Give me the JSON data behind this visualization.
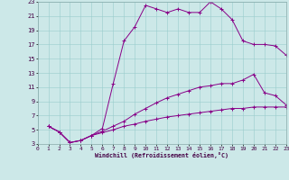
{
  "xlabel": "Windchill (Refroidissement éolien,°C)",
  "bg_color": "#cce8e8",
  "grid_color": "#99cccc",
  "line_color": "#880088",
  "xlim": [
    0,
    23
  ],
  "ylim": [
    3,
    23
  ],
  "xticks": [
    0,
    1,
    2,
    3,
    4,
    5,
    6,
    7,
    8,
    9,
    10,
    11,
    12,
    13,
    14,
    15,
    16,
    17,
    18,
    19,
    20,
    21,
    22,
    23
  ],
  "yticks": [
    3,
    5,
    7,
    9,
    11,
    13,
    15,
    17,
    19,
    21,
    23
  ],
  "line1_x": [
    1,
    2,
    3,
    4,
    5,
    6,
    7,
    8,
    9,
    10,
    11,
    12,
    13,
    14,
    15,
    16,
    17,
    18,
    19,
    20,
    21,
    22,
    23
  ],
  "line1_y": [
    5.5,
    4.7,
    3.2,
    3.5,
    4.2,
    5.2,
    11.5,
    17.5,
    19.5,
    22.5,
    22.0,
    21.5,
    22.0,
    21.5,
    21.5,
    23.0,
    22.0,
    20.5,
    17.5,
    17.0,
    17.0,
    16.8,
    15.5
  ],
  "line2_x": [
    1,
    2,
    3,
    4,
    5,
    6,
    7,
    8,
    9,
    10,
    11,
    12,
    13,
    14,
    15,
    16,
    17,
    18,
    19,
    20,
    21,
    22,
    23
  ],
  "line2_y": [
    5.5,
    4.7,
    3.2,
    3.5,
    4.2,
    4.8,
    5.5,
    6.2,
    7.2,
    8.0,
    8.8,
    9.5,
    10.0,
    10.5,
    11.0,
    11.2,
    11.5,
    11.5,
    12.0,
    12.8,
    10.2,
    9.8,
    8.5
  ],
  "line3_x": [
    1,
    2,
    3,
    4,
    5,
    6,
    7,
    8,
    9,
    10,
    11,
    12,
    13,
    14,
    15,
    16,
    17,
    18,
    19,
    20,
    21,
    22,
    23
  ],
  "line3_y": [
    5.5,
    4.7,
    3.2,
    3.5,
    4.2,
    4.6,
    5.0,
    5.5,
    5.8,
    6.2,
    6.5,
    6.8,
    7.0,
    7.2,
    7.4,
    7.6,
    7.8,
    8.0,
    8.0,
    8.2,
    8.2,
    8.2,
    8.2
  ]
}
